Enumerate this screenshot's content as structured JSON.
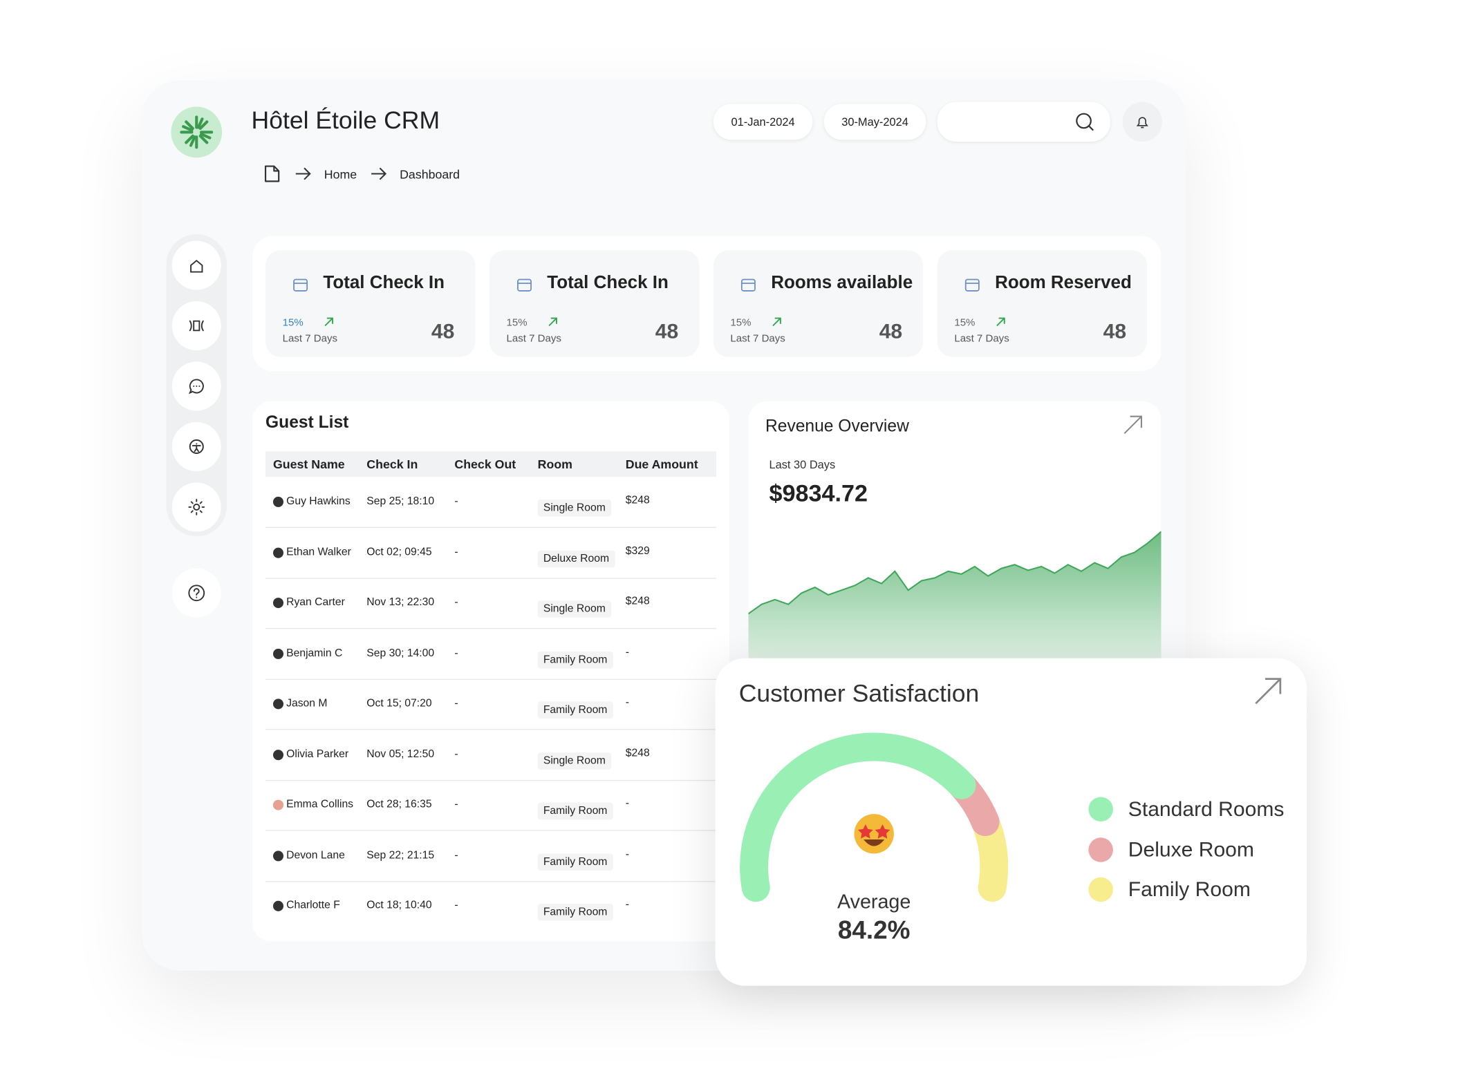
{
  "header": {
    "title": "Hôtel Étoile CRM",
    "date_from": "01-Jan-2024",
    "date_to": "30-May-2024"
  },
  "breadcrumb": [
    "Home",
    "Dashboard"
  ],
  "stats": [
    {
      "title": "Total Check In",
      "change": "15%",
      "period": "Last 7 Days",
      "value": 48
    },
    {
      "title": "Total Check In",
      "change": "15%",
      "period": "Last 7 Days",
      "value": 48
    },
    {
      "title": "Rooms available",
      "change": "15%",
      "period": "Last 7 Days",
      "value": 48
    },
    {
      "title": "Room Reserved",
      "change": "15%",
      "period": "Last 7 Days",
      "value": 48
    }
  ],
  "guest_list": {
    "title": "Guest List",
    "columns": [
      "Guest Name",
      "Check In",
      "Check Out",
      "Room",
      "Due Amount"
    ],
    "rows": [
      [
        "Guy Hawkins",
        "Sep 25; 18:10",
        "-",
        "Single Room",
        "$248"
      ],
      [
        "Ethan Walker",
        "Oct 02; 09:45",
        "-",
        "Deluxe Room",
        "$329"
      ],
      [
        "Ryan Carter",
        "Nov 13; 22:30",
        "-",
        "Single Room",
        "$248"
      ],
      [
        "Benjamin C",
        "Sep 30; 14:00",
        "-",
        "Family Room",
        "-"
      ],
      [
        "Jason M",
        "Oct 15; 07:20",
        "-",
        "Family Room",
        "-"
      ],
      [
        "Olivia Parker",
        "Nov 05; 12:50",
        "-",
        "Single Room",
        "$248"
      ],
      [
        "Emma Collins",
        "Oct 28; 16:35",
        "-",
        "Family Room",
        "-"
      ],
      [
        "Devon Lane",
        "Sep 22; 21:15",
        "-",
        "Family Room",
        "-"
      ],
      [
        "Charlotte F",
        "Oct 18; 10:40",
        "-",
        "Family Room",
        "-"
      ]
    ]
  },
  "chart_data": [
    {
      "type": "area",
      "title": "Revenue Overview",
      "subtitle": "Last 30 Days",
      "total": "$9834.72",
      "color": "#3fa75a",
      "values": [
        45,
        55,
        60,
        55,
        67,
        73,
        65,
        70,
        75,
        83,
        77,
        90,
        70,
        80,
        83,
        90,
        87,
        95,
        85,
        93,
        97,
        91,
        95,
        88,
        97,
        90,
        99,
        93,
        105,
        110,
        120,
        132
      ]
    },
    {
      "type": "gauge",
      "title": "Customer Satisfaction",
      "categories": [
        "Standard Rooms",
        "Deluxe Room",
        "Family Room"
      ],
      "values": [
        73.5,
        10.5,
        16
      ],
      "colors": [
        "#9af0b4",
        "#eaa8a8",
        "#f7ec8e"
      ],
      "center_label": "Average",
      "center_value": "84.2%"
    }
  ]
}
